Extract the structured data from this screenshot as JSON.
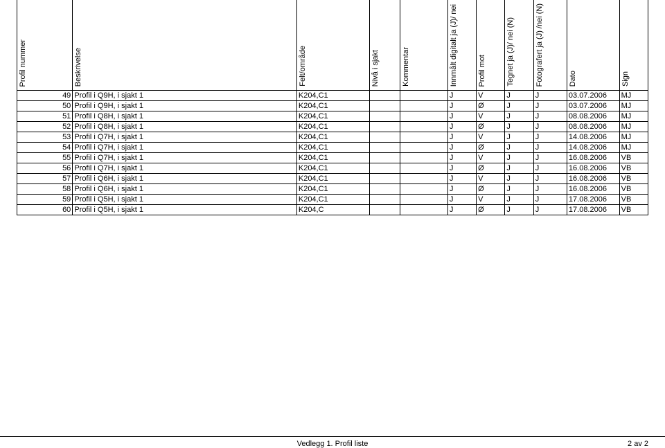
{
  "headers": {
    "num": "Profil nummer",
    "desc": "Beskrivelse",
    "felt": "Felt/område",
    "niva": "Nivå i sjakt",
    "komm": "Kommentar",
    "digit": "Innmålt digitalt ja (J)/ nei",
    "mot": "Profil mot",
    "tegn": "Tegnet ja (J)/ nei (N)",
    "foto": "Fotografert ja (J) /nei (N)",
    "dato": "Dato",
    "sign": "Sign"
  },
  "rows": [
    {
      "num": "49",
      "desc": "Profil i Q9H, i sjakt 1",
      "felt": "K204,C1",
      "niva": "",
      "komm": "",
      "digit": "J",
      "mot": "V",
      "tegn": "J",
      "foto": "J",
      "dato": "03.07.2006",
      "sign": "MJ"
    },
    {
      "num": "50",
      "desc": "Profil i Q9H, i sjakt 1",
      "felt": "K204,C1",
      "niva": "",
      "komm": "",
      "digit": "J",
      "mot": "Ø",
      "tegn": "J",
      "foto": "J",
      "dato": "03.07.2006",
      "sign": "MJ"
    },
    {
      "num": "51",
      "desc": "Profil i Q8H, i sjakt 1",
      "felt": "K204,C1",
      "niva": "",
      "komm": "",
      "digit": "J",
      "mot": "V",
      "tegn": "J",
      "foto": "J",
      "dato": "08.08.2006",
      "sign": "MJ"
    },
    {
      "num": "52",
      "desc": "Profil i Q8H, i sjakt 1",
      "felt": "K204,C1",
      "niva": "",
      "komm": "",
      "digit": "J",
      "mot": "Ø",
      "tegn": "J",
      "foto": "J",
      "dato": "08.08.2006",
      "sign": "MJ"
    },
    {
      "num": "53",
      "desc": "Profil i Q7H, i sjakt 1",
      "felt": "K204,C1",
      "niva": "",
      "komm": "",
      "digit": "J",
      "mot": "V",
      "tegn": "J",
      "foto": "J",
      "dato": "14.08.2006",
      "sign": "MJ"
    },
    {
      "num": "54",
      "desc": "Profil i Q7H, i sjakt 1",
      "felt": "K204,C1",
      "niva": "",
      "komm": "",
      "digit": "J",
      "mot": "Ø",
      "tegn": "J",
      "foto": "J",
      "dato": "14.08.2006",
      "sign": "MJ"
    },
    {
      "num": "55",
      "desc": "Profil i Q7H, i sjakt 1",
      "felt": "K204,C1",
      "niva": "",
      "komm": "",
      "digit": "J",
      "mot": "V",
      "tegn": "J",
      "foto": "J",
      "dato": "16.08.2006",
      "sign": "VB"
    },
    {
      "num": "56",
      "desc": "Profil i Q7H, i sjakt 1",
      "felt": "K204,C1",
      "niva": "",
      "komm": "",
      "digit": "J",
      "mot": "Ø",
      "tegn": "J",
      "foto": "J",
      "dato": "16.08.2006",
      "sign": "VB"
    },
    {
      "num": "57",
      "desc": "Profil i Q6H, i sjakt 1",
      "felt": "K204,C1",
      "niva": "",
      "komm": "",
      "digit": "J",
      "mot": "V",
      "tegn": "J",
      "foto": "J",
      "dato": "16.08.2006",
      "sign": "VB"
    },
    {
      "num": "58",
      "desc": "Profil i Q6H, i sjakt 1",
      "felt": "K204,C1",
      "niva": "",
      "komm": "",
      "digit": "J",
      "mot": "Ø",
      "tegn": "J",
      "foto": "J",
      "dato": "16.08.2006",
      "sign": "VB"
    },
    {
      "num": "59",
      "desc": "Profil i Q5H, i sjakt 1",
      "felt": "K204,C1",
      "niva": "",
      "komm": "",
      "digit": "J",
      "mot": "V",
      "tegn": "J",
      "foto": "J",
      "dato": "17.08.2006",
      "sign": "VB"
    },
    {
      "num": "60",
      "desc": "Profil i Q5H, i sjakt 1",
      "felt": "K204,C",
      "niva": "",
      "komm": "",
      "digit": "J",
      "mot": "Ø",
      "tegn": "J",
      "foto": "J",
      "dato": "17.08.2006",
      "sign": "VB"
    }
  ],
  "footer": {
    "center": "Vedlegg 1. Profil liste",
    "right": "2 av 2"
  }
}
